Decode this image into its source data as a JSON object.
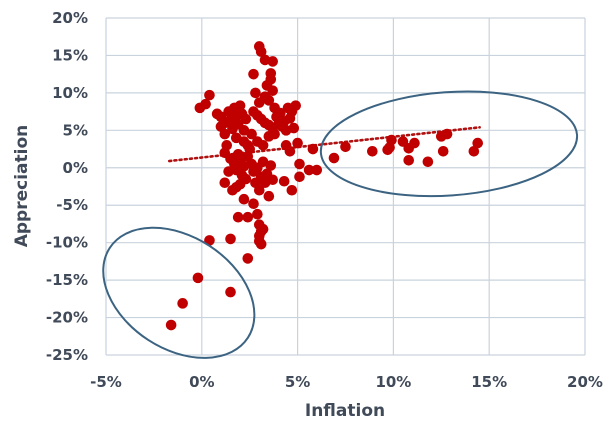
{
  "chart_data": {
    "type": "scatter",
    "title": "",
    "xlabel": "Inflation",
    "ylabel": "Appreciation",
    "xlim": [
      -0.05,
      0.2
    ],
    "ylim": [
      -0.25,
      0.2
    ],
    "grid": true,
    "x_ticks": [
      "-5%",
      "0%",
      "5%",
      "10%",
      "15%",
      "20%"
    ],
    "y_ticks": [
      "20%",
      "15%",
      "10%",
      "5%",
      "0%",
      "-5%",
      "-10%",
      "-15%",
      "-20%",
      "-25%"
    ],
    "colors": {
      "points": "#c00000",
      "trendline": "#b01010",
      "ellipses": "#3c6482",
      "grid": "#c9d3de",
      "text": "#404a58"
    },
    "series": [
      {
        "points": [
          [
            -0.016,
            -0.21
          ],
          [
            -0.01,
            -0.181
          ],
          [
            -0.002,
            -0.147
          ],
          [
            0.004,
            -0.097
          ],
          [
            0.015,
            -0.095
          ],
          [
            0.015,
            -0.166
          ],
          [
            0.024,
            -0.121
          ],
          [
            -0.001,
            0.08
          ],
          [
            0.002,
            0.085
          ],
          [
            0.004,
            0.097
          ],
          [
            0.008,
            0.072
          ],
          [
            0.01,
            0.068
          ],
          [
            0.01,
            0.055
          ],
          [
            0.012,
            0.06
          ],
          [
            0.012,
            0.045
          ],
          [
            0.013,
            0.03
          ],
          [
            0.014,
            0.075
          ],
          [
            0.015,
            0.064
          ],
          [
            0.016,
            0.052
          ],
          [
            0.017,
            0.08
          ],
          [
            0.018,
            0.069
          ],
          [
            0.018,
            0.04
          ],
          [
            0.019,
            0.058
          ],
          [
            0.02,
            0.083
          ],
          [
            0.021,
            0.072
          ],
          [
            0.022,
            0.05
          ],
          [
            0.023,
            0.065
          ],
          [
            0.012,
            0.02
          ],
          [
            0.015,
            0.012
          ],
          [
            0.017,
            0.005
          ],
          [
            0.018,
            -0.003
          ],
          [
            0.019,
            0.018
          ],
          [
            0.02,
            0.008
          ],
          [
            0.021,
            -0.01
          ],
          [
            0.022,
            0.002
          ],
          [
            0.023,
            -0.015
          ],
          [
            0.024,
            0.015
          ],
          [
            0.025,
            0.025
          ],
          [
            0.026,
            0.005
          ],
          [
            0.027,
            -0.005
          ],
          [
            0.028,
            -0.02
          ],
          [
            0.029,
            0.0
          ],
          [
            0.03,
            -0.03
          ],
          [
            0.031,
            -0.012
          ],
          [
            0.032,
            0.008
          ],
          [
            0.033,
            -0.02
          ],
          [
            0.034,
            -0.008
          ],
          [
            0.035,
            -0.038
          ],
          [
            0.036,
            0.003
          ],
          [
            0.037,
            -0.016
          ],
          [
            0.012,
            -0.02
          ],
          [
            0.014,
            -0.005
          ],
          [
            0.016,
            -0.03
          ],
          [
            0.018,
            -0.026
          ],
          [
            0.02,
            -0.022
          ],
          [
            0.022,
            -0.042
          ],
          [
            0.024,
            -0.066
          ],
          [
            0.019,
            -0.066
          ],
          [
            0.027,
            -0.048
          ],
          [
            0.029,
            -0.062
          ],
          [
            0.03,
            -0.076
          ],
          [
            0.031,
            -0.085
          ],
          [
            0.03,
            -0.091
          ],
          [
            0.03,
            -0.098
          ],
          [
            0.031,
            -0.102
          ],
          [
            0.032,
            -0.082
          ],
          [
            0.03,
            0.162
          ],
          [
            0.031,
            0.155
          ],
          [
            0.033,
            0.144
          ],
          [
            0.037,
            0.142
          ],
          [
            0.027,
            0.125
          ],
          [
            0.036,
            0.126
          ],
          [
            0.036,
            0.118
          ],
          [
            0.034,
            0.11
          ],
          [
            0.037,
            0.103
          ],
          [
            0.028,
            0.1
          ],
          [
            0.033,
            0.095
          ],
          [
            0.035,
            0.09
          ],
          [
            0.03,
            0.087
          ],
          [
            0.027,
            0.075
          ],
          [
            0.029,
            0.07
          ],
          [
            0.031,
            0.065
          ],
          [
            0.033,
            0.06
          ],
          [
            0.035,
            0.057
          ],
          [
            0.037,
            0.053
          ],
          [
            0.039,
            0.068
          ],
          [
            0.041,
            0.073
          ],
          [
            0.043,
            0.062
          ],
          [
            0.045,
            0.08
          ],
          [
            0.047,
            0.075
          ],
          [
            0.049,
            0.083
          ],
          [
            0.038,
            0.08
          ],
          [
            0.04,
            0.058
          ],
          [
            0.042,
            0.055
          ],
          [
            0.044,
            0.05
          ],
          [
            0.046,
            0.066
          ],
          [
            0.035,
            0.042
          ],
          [
            0.038,
            0.045
          ],
          [
            0.032,
            0.03
          ],
          [
            0.029,
            0.035
          ],
          [
            0.026,
            0.045
          ],
          [
            0.024,
            0.03
          ],
          [
            0.022,
            0.035
          ],
          [
            0.044,
            0.03
          ],
          [
            0.048,
            0.053
          ],
          [
            0.046,
            0.022
          ],
          [
            0.05,
            0.033
          ],
          [
            0.043,
            -0.018
          ],
          [
            0.047,
            -0.03
          ],
          [
            0.051,
            -0.012
          ],
          [
            0.051,
            0.005
          ],
          [
            0.056,
            -0.003
          ],
          [
            0.06,
            -0.003
          ],
          [
            0.058,
            0.025
          ],
          [
            0.069,
            0.013
          ],
          [
            0.075,
            0.028
          ],
          [
            0.089,
            0.022
          ],
          [
            0.097,
            0.024
          ],
          [
            0.098,
            0.027
          ],
          [
            0.099,
            0.037
          ],
          [
            0.105,
            0.035
          ],
          [
            0.108,
            0.01
          ],
          [
            0.108,
            0.026
          ],
          [
            0.111,
            0.033
          ],
          [
            0.118,
            0.008
          ],
          [
            0.125,
            0.042
          ],
          [
            0.126,
            0.022
          ],
          [
            0.128,
            0.045
          ],
          [
            0.142,
            0.022
          ],
          [
            0.144,
            0.033
          ]
        ]
      }
    ],
    "trendline": {
      "x": [
        -0.017,
        0.145
      ],
      "y": [
        0.009,
        0.054
      ]
    },
    "annotations": [
      {
        "type": "ellipse",
        "cx": 0.129,
        "cy": 0.032,
        "rx": 0.067,
        "ry": 0.069,
        "rotation_deg": -4
      },
      {
        "type": "ellipse",
        "cx": -0.012,
        "cy": -0.167,
        "rx": 0.043,
        "ry": 0.075,
        "rotation_deg": 33
      }
    ]
  }
}
